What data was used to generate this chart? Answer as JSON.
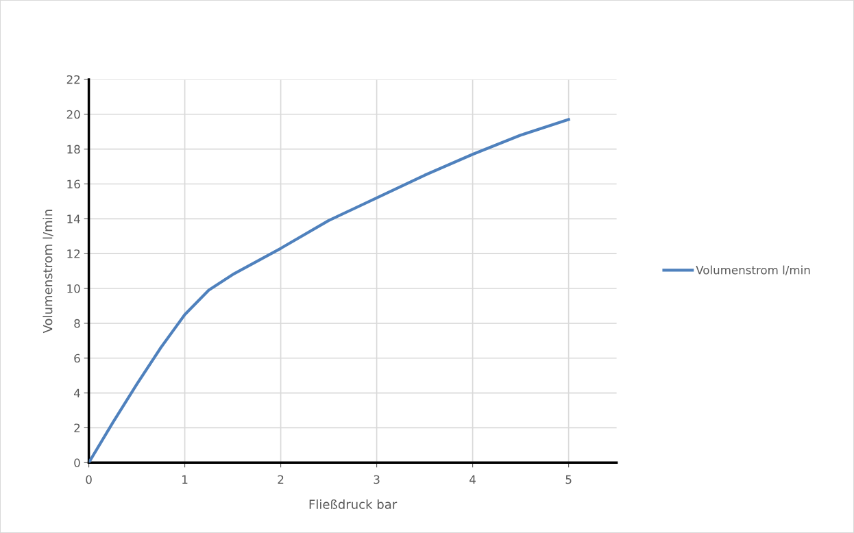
{
  "chart_data": {
    "type": "line",
    "xlabel": "Fließdruck bar",
    "ylabel": "Volumenstrom l/min",
    "x": [
      0,
      0.25,
      0.5,
      0.75,
      1,
      1.25,
      1.5,
      2,
      2.5,
      3,
      3.5,
      4,
      4.5,
      5
    ],
    "series": [
      {
        "name": "Volumenstrom l/min",
        "color": "#4f81bd",
        "values": [
          0,
          2.3,
          4.5,
          6.6,
          8.5,
          9.9,
          10.8,
          12.3,
          13.9,
          15.2,
          16.5,
          17.7,
          18.8,
          19.7
        ]
      }
    ],
    "xlim": [
      0,
      5.5
    ],
    "xticks": [
      0,
      1,
      2,
      3,
      4,
      5
    ],
    "ylim": [
      0,
      22
    ],
    "yticks": [
      0,
      2,
      4,
      6,
      8,
      10,
      12,
      14,
      16,
      18,
      20,
      22
    ],
    "grid": true,
    "legend": "right",
    "marker": "none",
    "line_style": "solid"
  }
}
